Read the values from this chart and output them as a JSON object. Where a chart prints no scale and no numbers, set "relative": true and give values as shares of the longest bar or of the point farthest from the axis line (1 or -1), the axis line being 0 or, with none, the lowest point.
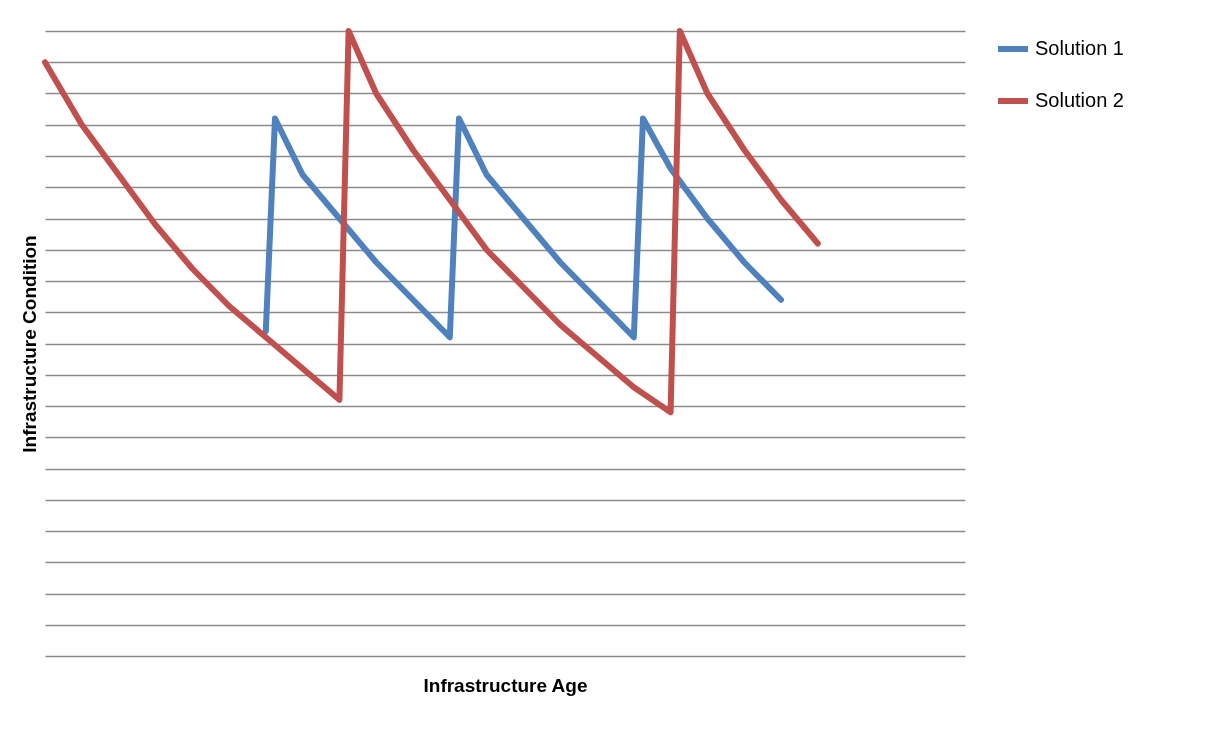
{
  "chart_data": {
    "type": "line",
    "xlabel": "Infrastructure Age",
    "ylabel": "Infrastructure Condition",
    "relative": true,
    "grid": "y",
    "legend": "right",
    "line_style": "solid",
    "categories": [
      null,
      null,
      null,
      null,
      null,
      null,
      null,
      null,
      null,
      null,
      null,
      null,
      null,
      null,
      null,
      null,
      null,
      null,
      null,
      null,
      null,
      null,
      null,
      null,
      null,
      null,
      null,
      null,
      null,
      null,
      null,
      null,
      null,
      null,
      null,
      null,
      null,
      null,
      null,
      null,
      null,
      null,
      null,
      null,
      null,
      null,
      null,
      null,
      null,
      null,
      null,
      null,
      null,
      null,
      null,
      null,
      null,
      null,
      null,
      null,
      null,
      null,
      null,
      null,
      null,
      null,
      null,
      null,
      null,
      null,
      null,
      null,
      null,
      null,
      null,
      null,
      null,
      null,
      null,
      null,
      null,
      null,
      null,
      null,
      null,
      null,
      null,
      null,
      null,
      null,
      null,
      null,
      null,
      null,
      null,
      null,
      null,
      null,
      null,
      null,
      null
    ],
    "series": [
      {
        "name": "Solution 1",
        "color": "#4f81bd",
        "values": [
          null,
          null,
          null,
          null,
          null,
          null,
          null,
          null,
          null,
          null,
          null,
          null,
          null,
          null,
          null,
          null,
          null,
          null,
          null,
          null,
          null,
          null,
          null,
          null,
          0.52,
          0.86,
          null,
          null,
          0.77,
          null,
          null,
          null,
          0.7,
          null,
          null,
          null,
          0.63,
          null,
          null,
          null,
          0.57,
          null,
          null,
          null,
          0.51,
          0.86,
          null,
          null,
          0.77,
          null,
          null,
          null,
          0.7,
          null,
          null,
          null,
          0.63,
          null,
          null,
          null,
          0.57,
          null,
          null,
          null,
          0.51,
          0.86,
          null,
          null,
          0.78,
          null,
          null,
          null,
          0.7,
          null,
          null,
          null,
          0.63,
          null,
          null,
          null,
          0.57,
          null,
          null,
          null,
          null,
          null,
          null,
          null,
          null,
          null,
          null,
          null,
          null,
          null,
          null,
          null,
          null,
          null,
          null,
          null,
          null
        ]
      },
      {
        "name": "Solution 2",
        "color": "#c0504d",
        "values": [
          0.95,
          null,
          null,
          null,
          0.85,
          null,
          null,
          null,
          0.77,
          null,
          null,
          null,
          0.69,
          null,
          null,
          null,
          0.62,
          null,
          null,
          null,
          0.56,
          null,
          null,
          null,
          0.51,
          null,
          null,
          null,
          0.46,
          null,
          null,
          null,
          0.41,
          1,
          null,
          null,
          0.9,
          null,
          null,
          null,
          0.81,
          null,
          null,
          null,
          0.73,
          null,
          null,
          null,
          0.65,
          null,
          null,
          null,
          0.59,
          null,
          null,
          null,
          0.53,
          null,
          null,
          null,
          0.48,
          null,
          null,
          null,
          0.43,
          null,
          null,
          null,
          0.39,
          1,
          null,
          null,
          0.9,
          null,
          null,
          null,
          0.81,
          null,
          null,
          null,
          0.73,
          null,
          null,
          null,
          0.66,
          null,
          null,
          null,
          null,
          null,
          null,
          null,
          null,
          null,
          null,
          null,
          null,
          null,
          null,
          null,
          null
        ]
      }
    ]
  }
}
